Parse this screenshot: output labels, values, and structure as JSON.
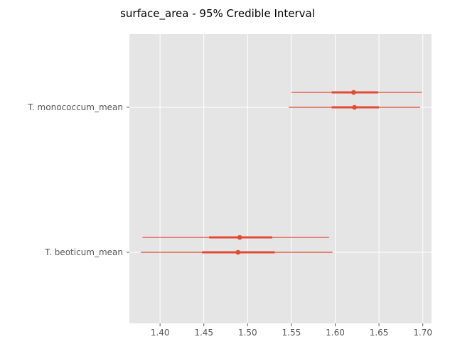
{
  "chart_data": {
    "type": "forest",
    "title": "surface_area - 95% Credible Interval",
    "xlabel": "",
    "ylabel": "",
    "xlim": [
      1.365,
      1.71
    ],
    "x_ticks": [
      1.4,
      1.45,
      1.5,
      1.55,
      1.6,
      1.65,
      1.7
    ],
    "x_tick_labels": [
      "1.40",
      "1.45",
      "1.50",
      "1.55",
      "1.60",
      "1.65",
      "1.70"
    ],
    "grid": true,
    "categories": [
      "T. monococcum_mean",
      "T. beoticum_mean"
    ],
    "series": [
      {
        "intervals": [
          {
            "category": "T. monococcum_mean",
            "mean": 1.621,
            "hdi_low": 1.55,
            "hdi_high": 1.699,
            "q_low": 1.596,
            "q_high": 1.649
          },
          {
            "category": "T. beoticum_mean",
            "mean": 1.491,
            "hdi_low": 1.38,
            "hdi_high": 1.593,
            "q_low": 1.456,
            "q_high": 1.528
          }
        ]
      },
      {
        "intervals": [
          {
            "category": "T. monococcum_mean",
            "mean": 1.622,
            "hdi_low": 1.547,
            "hdi_high": 1.697,
            "q_low": 1.596,
            "q_high": 1.65
          },
          {
            "category": "T. beoticum_mean",
            "mean": 1.489,
            "hdi_low": 1.378,
            "hdi_high": 1.597,
            "q_low": 1.448,
            "q_high": 1.531
          }
        ]
      }
    ],
    "colors": {
      "plot_background": "#e5e5e5",
      "grid": "#ffffff",
      "interval": "#e24a33",
      "text": "#555555",
      "title": "#000000"
    }
  }
}
